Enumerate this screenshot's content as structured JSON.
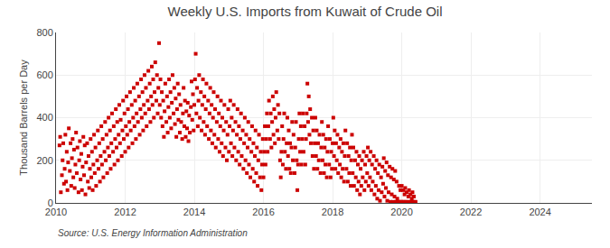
{
  "chart_data": {
    "type": "scatter",
    "title": "Weekly U.S. Imports from Kuwait of Crude Oil",
    "ylabel": "Thousand Barrels per Day",
    "source": "Source: U.S. Energy Information Administration",
    "color": "#cc0000",
    "marker": "square",
    "grid": true,
    "xlim": [
      2010.0,
      2025.5
    ],
    "ylim": [
      0,
      800
    ],
    "xticks": [
      2010,
      2012,
      2014,
      2016,
      2018,
      2020,
      2022,
      2024
    ],
    "yticks": [
      0,
      200,
      400,
      600,
      800
    ],
    "x": [
      2010.1,
      2010.12,
      2010.14,
      2010.17,
      2010.19,
      2010.21,
      2010.23,
      2010.25,
      2010.27,
      2010.29,
      2010.31,
      2010.33,
      2010.35,
      2010.37,
      2010.4,
      2010.42,
      2010.44,
      2010.46,
      2010.48,
      2010.5,
      2010.52,
      2010.54,
      2010.56,
      2010.58,
      2010.6,
      2010.62,
      2010.65,
      2010.67,
      2010.69,
      2010.71,
      2010.73,
      2010.75,
      2010.77,
      2010.79,
      2010.81,
      2010.83,
      2010.85,
      2010.87,
      2010.9,
      2010.92,
      2010.94,
      2010.96,
      2010.98,
      2011.0,
      2011.02,
      2011.04,
      2011.06,
      2011.08,
      2011.1,
      2011.12,
      2011.14,
      2011.16,
      2011.19,
      2011.21,
      2011.23,
      2011.25,
      2011.27,
      2011.29,
      2011.31,
      2011.33,
      2011.35,
      2011.37,
      2011.4,
      2011.42,
      2011.44,
      2011.46,
      2011.48,
      2011.5,
      2011.52,
      2011.54,
      2011.56,
      2011.58,
      2011.6,
      2011.62,
      2011.65,
      2011.67,
      2011.69,
      2011.71,
      2011.73,
      2011.75,
      2011.77,
      2011.79,
      2011.81,
      2011.83,
      2011.85,
      2011.87,
      2011.9,
      2011.92,
      2011.94,
      2011.96,
      2011.98,
      2012.0,
      2012.02,
      2012.04,
      2012.06,
      2012.08,
      2012.1,
      2012.12,
      2012.14,
      2012.16,
      2012.19,
      2012.21,
      2012.23,
      2012.25,
      2012.27,
      2012.29,
      2012.31,
      2012.33,
      2012.35,
      2012.37,
      2012.4,
      2012.42,
      2012.44,
      2012.46,
      2012.48,
      2012.5,
      2012.52,
      2012.54,
      2012.56,
      2012.58,
      2012.6,
      2012.62,
      2012.65,
      2012.67,
      2012.69,
      2012.71,
      2012.73,
      2012.75,
      2012.77,
      2012.79,
      2012.81,
      2012.83,
      2012.85,
      2012.87,
      2012.9,
      2012.92,
      2012.94,
      2012.96,
      2012.98,
      2013.0,
      2013.02,
      2013.04,
      2013.06,
      2013.08,
      2013.1,
      2013.12,
      2013.14,
      2013.16,
      2013.19,
      2013.21,
      2013.23,
      2013.25,
      2013.27,
      2013.29,
      2013.31,
      2013.33,
      2013.35,
      2013.37,
      2013.4,
      2013.42,
      2013.44,
      2013.46,
      2013.48,
      2013.5,
      2013.52,
      2013.54,
      2013.56,
      2013.58,
      2013.6,
      2013.62,
      2013.65,
      2013.67,
      2013.69,
      2013.71,
      2013.73,
      2013.75,
      2013.77,
      2013.79,
      2013.81,
      2013.83,
      2013.85,
      2013.87,
      2013.9,
      2013.92,
      2013.94,
      2013.96,
      2013.98,
      2014.0,
      2014.02,
      2014.04,
      2014.06,
      2014.08,
      2014.1,
      2014.12,
      2014.14,
      2014.16,
      2014.19,
      2014.21,
      2014.23,
      2014.25,
      2014.27,
      2014.29,
      2014.31,
      2014.33,
      2014.35,
      2014.37,
      2014.4,
      2014.42,
      2014.44,
      2014.46,
      2014.48,
      2014.5,
      2014.52,
      2014.54,
      2014.56,
      2014.58,
      2014.6,
      2014.62,
      2014.65,
      2014.67,
      2014.69,
      2014.71,
      2014.73,
      2014.75,
      2014.77,
      2014.79,
      2014.81,
      2014.83,
      2014.85,
      2014.87,
      2014.9,
      2014.92,
      2014.94,
      2014.96,
      2014.98,
      2015.0,
      2015.02,
      2015.04,
      2015.06,
      2015.08,
      2015.1,
      2015.12,
      2015.14,
      2015.16,
      2015.19,
      2015.21,
      2015.23,
      2015.25,
      2015.27,
      2015.29,
      2015.31,
      2015.33,
      2015.35,
      2015.37,
      2015.4,
      2015.42,
      2015.44,
      2015.46,
      2015.48,
      2015.5,
      2015.52,
      2015.54,
      2015.56,
      2015.58,
      2015.6,
      2015.62,
      2015.65,
      2015.67,
      2015.69,
      2015.71,
      2015.73,
      2015.75,
      2015.77,
      2015.79,
      2015.81,
      2015.83,
      2015.85,
      2015.87,
      2015.9,
      2015.92,
      2015.94,
      2015.96,
      2015.98,
      2016.0,
      2016.02,
      2016.04,
      2016.06,
      2016.08,
      2016.1,
      2016.12,
      2016.14,
      2016.16,
      2016.19,
      2016.21,
      2016.23,
      2016.25,
      2016.27,
      2016.29,
      2016.31,
      2016.33,
      2016.35,
      2016.37,
      2016.4,
      2016.42,
      2016.44,
      2016.46,
      2016.48,
      2016.5,
      2016.52,
      2016.54,
      2016.56,
      2016.58,
      2016.6,
      2016.62,
      2016.65,
      2016.67,
      2016.69,
      2016.71,
      2016.73,
      2016.75,
      2016.77,
      2016.79,
      2016.81,
      2016.83,
      2016.85,
      2016.87,
      2016.9,
      2016.92,
      2016.94,
      2016.96,
      2016.98,
      2017.0,
      2017.02,
      2017.04,
      2017.06,
      2017.08,
      2017.1,
      2017.12,
      2017.14,
      2017.16,
      2017.19,
      2017.21,
      2017.23,
      2017.25,
      2017.27,
      2017.29,
      2017.31,
      2017.33,
      2017.35,
      2017.37,
      2017.4,
      2017.42,
      2017.44,
      2017.46,
      2017.48,
      2017.5,
      2017.52,
      2017.54,
      2017.56,
      2017.58,
      2017.6,
      2017.62,
      2017.65,
      2017.67,
      2017.69,
      2017.71,
      2017.73,
      2017.75,
      2017.77,
      2017.79,
      2017.81,
      2017.83,
      2017.85,
      2017.87,
      2017.9,
      2017.92,
      2017.94,
      2017.96,
      2017.98,
      2018.0,
      2018.02,
      2018.04,
      2018.06,
      2018.08,
      2018.1,
      2018.12,
      2018.14,
      2018.16,
      2018.19,
      2018.21,
      2018.23,
      2018.25,
      2018.27,
      2018.29,
      2018.31,
      2018.33,
      2018.35,
      2018.37,
      2018.4,
      2018.42,
      2018.44,
      2018.46,
      2018.48,
      2018.5,
      2018.52,
      2018.54,
      2018.56,
      2018.58,
      2018.6,
      2018.62,
      2018.65,
      2018.67,
      2018.69,
      2018.71,
      2018.73,
      2018.75,
      2018.77,
      2018.79,
      2018.81,
      2018.83,
      2018.85,
      2018.87,
      2018.9,
      2018.92,
      2018.94,
      2018.96,
      2018.98,
      2019.0,
      2019.02,
      2019.04,
      2019.06,
      2019.08,
      2019.1,
      2019.12,
      2019.14,
      2019.16,
      2019.19,
      2019.21,
      2019.23,
      2019.25,
      2019.27,
      2019.29,
      2019.31,
      2019.33,
      2019.35,
      2019.37,
      2019.4,
      2019.42,
      2019.44,
      2019.46,
      2019.48,
      2019.5,
      2019.52,
      2019.54,
      2019.56,
      2019.58,
      2019.6,
      2019.62,
      2019.65,
      2019.67,
      2019.69,
      2019.71,
      2019.73,
      2019.75,
      2019.77,
      2019.79,
      2019.81,
      2019.83,
      2019.85,
      2019.87,
      2019.9,
      2019.92,
      2019.94,
      2019.96,
      2019.98,
      2020.0,
      2020.02,
      2020.04,
      2020.06,
      2020.08,
      2020.1,
      2020.12,
      2020.14,
      2020.16,
      2020.19,
      2020.21,
      2020.23,
      2020.25,
      2020.27,
      2020.29,
      2020.31,
      2020.33,
      2020.35,
      2020.37,
      2020.4
    ],
    "values": [
      270,
      310,
      50,
      130,
      200,
      280,
      90,
      160,
      320,
      100,
      240,
      60,
      190,
      350,
      150,
      280,
      80,
      210,
      300,
      120,
      250,
      70,
      180,
      330,
      140,
      260,
      50,
      200,
      290,
      110,
      230,
      60,
      170,
      310,
      130,
      270,
      40,
      190,
      280,
      100,
      220,
      70,
      160,
      300,
      120,
      240,
      60,
      180,
      320,
      140,
      260,
      80,
      200,
      340,
      160,
      280,
      100,
      220,
      360,
      180,
      300,
      120,
      240,
      380,
      200,
      320,
      140,
      260,
      400,
      220,
      340,
      160,
      280,
      420,
      240,
      360,
      180,
      300,
      440,
      260,
      380,
      200,
      320,
      460,
      280,
      390,
      220,
      340,
      480,
      300,
      420,
      240,
      360,
      500,
      320,
      440,
      260,
      380,
      520,
      340,
      460,
      280,
      400,
      540,
      360,
      480,
      300,
      420,
      560,
      380,
      500,
      320,
      440,
      580,
      400,
      520,
      340,
      460,
      600,
      420,
      540,
      360,
      480,
      620,
      440,
      560,
      380,
      500,
      640,
      460,
      580,
      400,
      520,
      660,
      480,
      600,
      420,
      540,
      750,
      460,
      580,
      400,
      520,
      360,
      480,
      310,
      430,
      560,
      380,
      500,
      330,
      450,
      580,
      400,
      520,
      350,
      470,
      600,
      420,
      540,
      370,
      490,
      310,
      440,
      560,
      390,
      510,
      330,
      460,
      380,
      300,
      420,
      540,
      360,
      480,
      310,
      430,
      350,
      470,
      290,
      410,
      330,
      450,
      570,
      390,
      510,
      340,
      460,
      580,
      700,
      420,
      540,
      360,
      480,
      600,
      400,
      520,
      340,
      460,
      580,
      380,
      500,
      320,
      440,
      560,
      360,
      480,
      300,
      420,
      540,
      340,
      460,
      280,
      400,
      520,
      320,
      440,
      260,
      380,
      500,
      300,
      420,
      240,
      360,
      480,
      280,
      400,
      220,
      340,
      460,
      260,
      380,
      200,
      320,
      440,
      240,
      360,
      480,
      280,
      400,
      220,
      340,
      460,
      260,
      380,
      200,
      320,
      440,
      240,
      360,
      180,
      300,
      420,
      220,
      340,
      160,
      280,
      400,
      200,
      320,
      140,
      260,
      380,
      180,
      300,
      120,
      240,
      360,
      160,
      280,
      100,
      220,
      340,
      140,
      260,
      80,
      200,
      320,
      120,
      240,
      60,
      180,
      300,
      120,
      240,
      360,
      180,
      300,
      420,
      240,
      360,
      480,
      300,
      420,
      260,
      380,
      500,
      320,
      440,
      280,
      400,
      520,
      340,
      460,
      300,
      420,
      200,
      120,
      240,
      360,
      180,
      300,
      420,
      240,
      160,
      280,
      400,
      220,
      340,
      160,
      280,
      140,
      260,
      380,
      200,
      320,
      140,
      260,
      380,
      200,
      60,
      180,
      300,
      420,
      240,
      360,
      180,
      300,
      420,
      240,
      360,
      180,
      300,
      420,
      560,
      380,
      500,
      320,
      440,
      280,
      400,
      220,
      340,
      160,
      280,
      400,
      220,
      340,
      160,
      280,
      200,
      320,
      140,
      260,
      380,
      200,
      320,
      140,
      260,
      180,
      300,
      120,
      240,
      360,
      180,
      300,
      120,
      240,
      160,
      280,
      400,
      220,
      340,
      160,
      280,
      200,
      320,
      140,
      260,
      180,
      300,
      120,
      240,
      160,
      280,
      100,
      220,
      340,
      160,
      280,
      100,
      220,
      140,
      260,
      80,
      200,
      320,
      140,
      260,
      80,
      200,
      120,
      240,
      60,
      180,
      100,
      220,
      40,
      160,
      80,
      200,
      120,
      240,
      60,
      180,
      100,
      220,
      140,
      260,
      80,
      200,
      120,
      240,
      60,
      180,
      100,
      220,
      40,
      160,
      80,
      200,
      20,
      140,
      60,
      180,
      10,
      120,
      50,
      170,
      90,
      210,
      30,
      150,
      70,
      190,
      10,
      130,
      50,
      170,
      5,
      120,
      40,
      160,
      5,
      110,
      30,
      150,
      5,
      100,
      20,
      5,
      80,
      5,
      60,
      5,
      80,
      5,
      60,
      5,
      40,
      70,
      5,
      50,
      5,
      30,
      60,
      5,
      40,
      5,
      20,
      50,
      5,
      30,
      5,
      5
    ]
  }
}
